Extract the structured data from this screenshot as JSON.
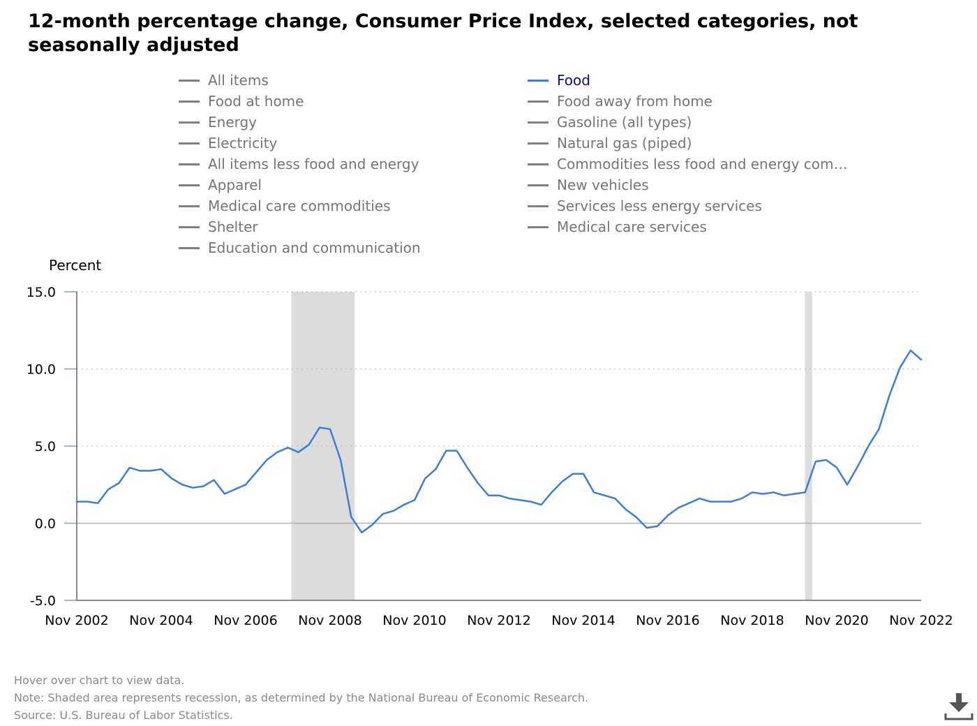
{
  "title": "12-month percentage change, Consumer Price Index, selected categories, not seasonally adjusted",
  "legend": {
    "items": [
      {
        "label": "All items",
        "active": false
      },
      {
        "label": "Food",
        "active": true
      },
      {
        "label": "Food at home",
        "active": false
      },
      {
        "label": "Food away from home",
        "active": false
      },
      {
        "label": "Energy",
        "active": false
      },
      {
        "label": "Gasoline (all types)",
        "active": false
      },
      {
        "label": "Electricity",
        "active": false
      },
      {
        "label": "Natural gas (piped)",
        "active": false
      },
      {
        "label": "All items less food and energy",
        "active": false
      },
      {
        "label": "Commodities less food and energy com…",
        "active": false
      },
      {
        "label": "Apparel",
        "active": false
      },
      {
        "label": "New vehicles",
        "active": false
      },
      {
        "label": "Medical care commodities",
        "active": false
      },
      {
        "label": "Services less energy services",
        "active": false
      },
      {
        "label": "Shelter",
        "active": false
      },
      {
        "label": "Medical care services",
        "active": false
      },
      {
        "label": "Education and communication",
        "active": false
      }
    ]
  },
  "chart_data": {
    "type": "line",
    "ylabel": "Percent",
    "ylim": [
      -5,
      15
    ],
    "yticks": [
      "15.0",
      "10.0",
      "5.0",
      "0.0",
      "-5.0"
    ],
    "xticks": [
      "Nov 2002",
      "Nov 2004",
      "Nov 2006",
      "Nov 2008",
      "Nov 2010",
      "Nov 2012",
      "Nov 2014",
      "Nov 2016",
      "Nov 2018",
      "Nov 2020",
      "Nov 2022"
    ],
    "grid": true,
    "recessions": [
      {
        "start": "Dec 2007",
        "end": "Jun 2009"
      },
      {
        "start": "Feb 2020",
        "end": "Apr 2020"
      }
    ],
    "series": [
      {
        "name": "Food",
        "color": "#3b7dd8",
        "x": [
          "Nov 2002",
          "Feb 2003",
          "May 2003",
          "Aug 2003",
          "Nov 2003",
          "Feb 2004",
          "May 2004",
          "Aug 2004",
          "Nov 2004",
          "Feb 2005",
          "May 2005",
          "Aug 2005",
          "Nov 2005",
          "Feb 2006",
          "May 2006",
          "Aug 2006",
          "Nov 2006",
          "Feb 2007",
          "May 2007",
          "Aug 2007",
          "Nov 2007",
          "Feb 2008",
          "May 2008",
          "Aug 2008",
          "Nov 2008",
          "Feb 2009",
          "May 2009",
          "Aug 2009",
          "Nov 2009",
          "Feb 2010",
          "May 2010",
          "Aug 2010",
          "Nov 2010",
          "Feb 2011",
          "May 2011",
          "Aug 2011",
          "Nov 2011",
          "Feb 2012",
          "May 2012",
          "Aug 2012",
          "Nov 2012",
          "Feb 2013",
          "May 2013",
          "Aug 2013",
          "Nov 2013",
          "Feb 2014",
          "May 2014",
          "Aug 2014",
          "Nov 2014",
          "Feb 2015",
          "May 2015",
          "Aug 2015",
          "Nov 2015",
          "Feb 2016",
          "May 2016",
          "Aug 2016",
          "Nov 2016",
          "Feb 2017",
          "May 2017",
          "Aug 2017",
          "Nov 2017",
          "Feb 2018",
          "May 2018",
          "Aug 2018",
          "Nov 2018",
          "Feb 2019",
          "May 2019",
          "Aug 2019",
          "Nov 2019",
          "Feb 2020",
          "May 2020",
          "Aug 2020",
          "Nov 2020",
          "Feb 2021",
          "May 2021",
          "Aug 2021",
          "Nov 2021",
          "Feb 2022",
          "May 2022",
          "Aug 2022",
          "Nov 2022"
        ],
        "values": [
          1.4,
          1.4,
          1.3,
          2.2,
          2.6,
          3.6,
          3.4,
          3.4,
          3.5,
          2.9,
          2.5,
          2.3,
          2.4,
          2.8,
          1.9,
          2.2,
          2.5,
          3.3,
          4.1,
          4.6,
          4.9,
          4.6,
          5.1,
          6.2,
          6.1,
          4.1,
          0.4,
          -0.6,
          -0.1,
          0.6,
          0.8,
          1.2,
          1.5,
          2.9,
          3.5,
          4.7,
          4.7,
          3.6,
          2.6,
          1.8,
          1.8,
          1.6,
          1.5,
          1.4,
          1.2,
          2.0,
          2.7,
          3.2,
          3.2,
          2.0,
          1.8,
          1.6,
          0.9,
          0.4,
          -0.3,
          -0.2,
          0.5,
          1.0,
          1.3,
          1.6,
          1.4,
          1.4,
          1.4,
          1.6,
          2.0,
          1.9,
          2.0,
          1.8,
          1.9,
          2.0,
          4.0,
          4.1,
          3.6,
          2.5,
          3.7,
          5.0,
          6.1,
          8.3,
          10.1,
          11.2,
          10.6
        ]
      }
    ]
  },
  "notes": {
    "hover": "Hover over chart to view data.",
    "note": "Note: Shaded area represents recession, as determined by the National Bureau of Economic Research.",
    "source": "Source: U.S. Bureau of Labor Statistics."
  },
  "icons": {
    "download": "download-icon"
  }
}
